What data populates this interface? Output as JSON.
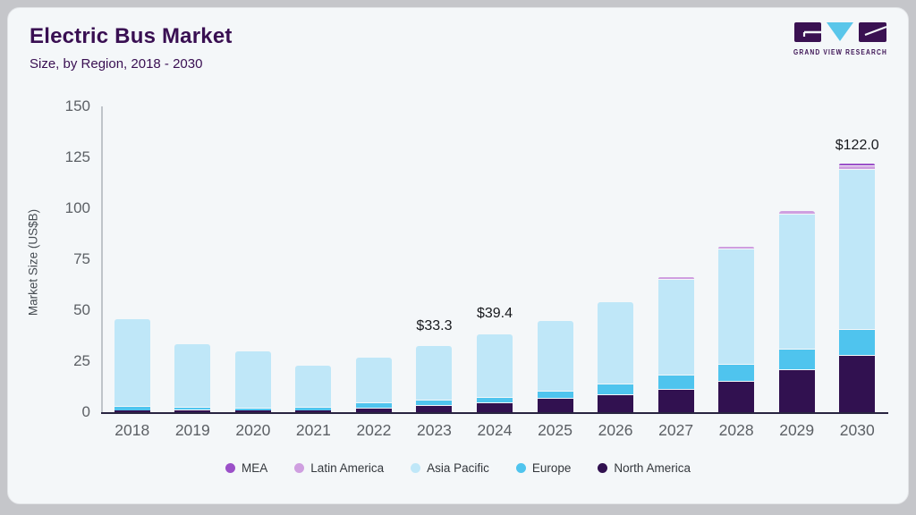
{
  "header": {
    "title": "Electric Bus Market",
    "subtitle": "Size, by Region, 2018 - 2030",
    "logo_caption": "GRAND VIEW RESEARCH"
  },
  "colors": {
    "card_background": "#f4f7f9",
    "outer_background": "#c5c6ca",
    "title_text": "#390f52",
    "axis_text": "#5c6065",
    "axis_line": "#282440",
    "logo_purple": "#3a1152",
    "logo_blue": "#5ac6ea"
  },
  "chart_data": {
    "type": "bar",
    "stacked": true,
    "title": "Electric Bus Market",
    "subtitle": "Size, by Region, 2018 - 2030",
    "xlabel": "",
    "ylabel": "Market Size (US$B)",
    "ylim": [
      0,
      150
    ],
    "yticks": [
      0,
      25,
      50,
      75,
      100,
      125,
      150
    ],
    "grid": false,
    "legend_position": "bottom",
    "categories": [
      "2018",
      "2019",
      "2020",
      "2021",
      "2022",
      "2023",
      "2024",
      "2025",
      "2026",
      "2027",
      "2028",
      "2029",
      "2030"
    ],
    "stack_order_bottom_to_top": [
      "North America",
      "Europe",
      "Asia Pacific",
      "Latin America",
      "MEA"
    ],
    "series": [
      {
        "name": "MEA",
        "color": "#9b50c8",
        "values": [
          0.1,
          0.1,
          0.1,
          0.1,
          0.2,
          0.2,
          0.2,
          0.3,
          0.3,
          0.4,
          0.5,
          0.6,
          0.8
        ]
      },
      {
        "name": "Latin America",
        "color": "#cf9fe0",
        "values": [
          0.2,
          0.2,
          0.2,
          0.2,
          0.3,
          0.3,
          0.4,
          0.5,
          0.6,
          0.8,
          1.2,
          1.7,
          1.9
        ]
      },
      {
        "name": "Asia Pacific",
        "color": "#bfe7f8",
        "values": [
          43.3,
          30.9,
          28.0,
          20.8,
          22.5,
          26.8,
          31.2,
          34.5,
          40.1,
          47.0,
          56.5,
          66.4,
          78.7
        ]
      },
      {
        "name": "Europe",
        "color": "#4fc4ee",
        "values": [
          1.9,
          1.6,
          1.4,
          1.5,
          2.5,
          2.7,
          2.9,
          3.8,
          5.4,
          6.8,
          8.3,
          10.1,
          12.4
        ]
      },
      {
        "name": "North America",
        "color": "#311150",
        "values": [
          1.0,
          1.1,
          1.0,
          1.0,
          2.3,
          3.3,
          4.7,
          6.9,
          8.8,
          11.5,
          15.4,
          20.9,
          28.2
        ]
      }
    ],
    "annotations": [
      {
        "category": "2023",
        "text": "$33.3"
      },
      {
        "category": "2024",
        "text": "$39.4"
      },
      {
        "category": "2030",
        "text": "$122.0"
      }
    ],
    "totals_visible_labels": {
      "2023": 33.3,
      "2024": 39.4,
      "2030": 122.0
    }
  }
}
